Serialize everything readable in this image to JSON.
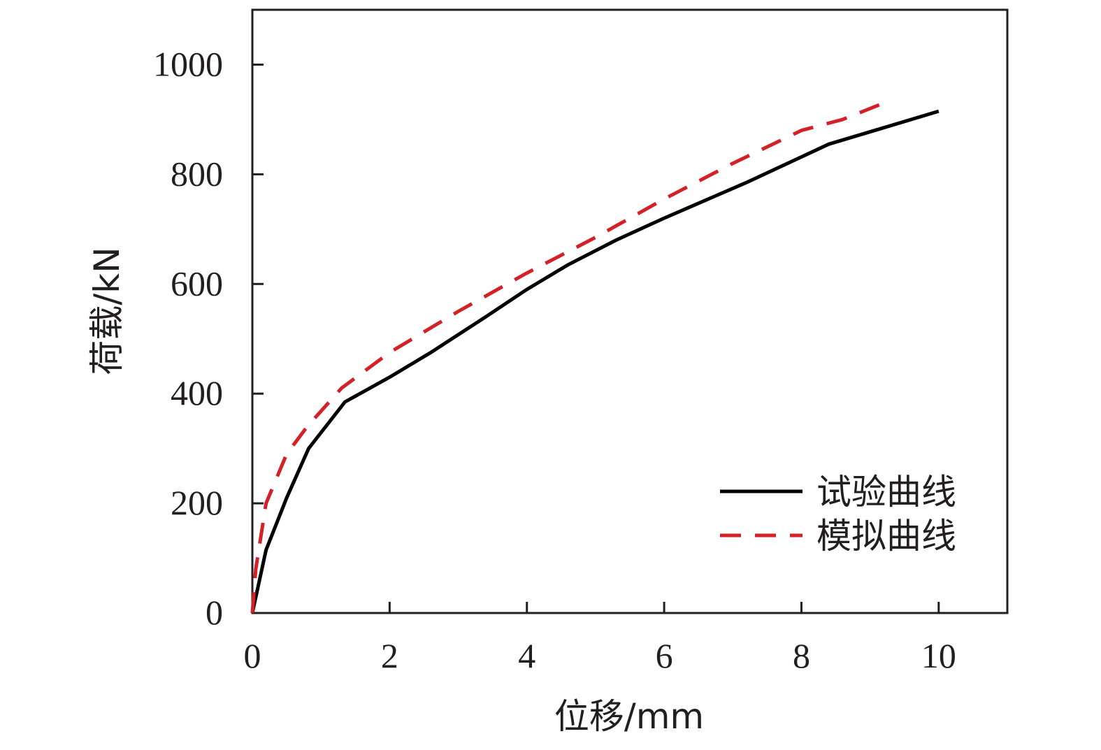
{
  "chart_data": {
    "type": "line",
    "xlabel": "位移/mm",
    "ylabel": "荷载/kN",
    "xlim": [
      0,
      11
    ],
    "ylim": [
      0,
      1100
    ],
    "xticks": [
      0,
      2,
      4,
      6,
      8,
      10
    ],
    "yticks": [
      0,
      200,
      400,
      600,
      800,
      1000
    ],
    "grid": false,
    "legend_position": "bottom-right",
    "series": [
      {
        "name": "试验曲线",
        "color": "#000000",
        "dash": "solid",
        "x": [
          0.0,
          0.2,
          0.5,
          0.82,
          1.35,
          2.0,
          2.6,
          3.4,
          4.0,
          4.6,
          5.3,
          6.0,
          7.2,
          8.4,
          9.2,
          10.0
        ],
        "y": [
          0,
          115,
          210,
          300,
          385,
          430,
          475,
          540,
          590,
          635,
          680,
          720,
          785,
          855,
          885,
          915
        ]
      },
      {
        "name": "模拟曲线",
        "color": "#d42027",
        "dash": "dashed",
        "x": [
          0.0,
          0.05,
          0.2,
          0.5,
          0.8,
          1.3,
          2.0,
          3.0,
          4.0,
          5.0,
          6.0,
          7.0,
          8.0,
          8.6,
          9.2
        ],
        "y": [
          0,
          80,
          200,
          290,
          340,
          410,
          475,
          550,
          620,
          685,
          755,
          820,
          880,
          900,
          930
        ]
      }
    ]
  }
}
